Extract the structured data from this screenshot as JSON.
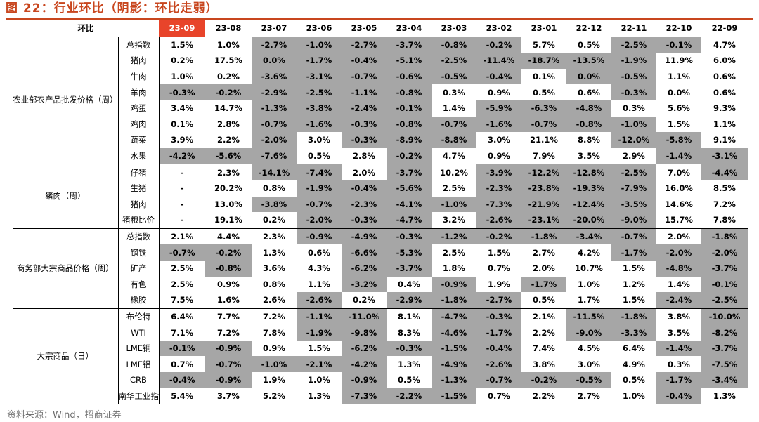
{
  "title": "图 22：行业环比（阴影：环比走弱）",
  "source": "资料来源：Wind，招商证券",
  "table": {
    "corner_label": "环比",
    "columns": [
      "23-09",
      "23-08",
      "23-07",
      "23-06",
      "23-05",
      "23-04",
      "23-03",
      "23-02",
      "23-01",
      "22-12",
      "22-11",
      "22-10",
      "22-09"
    ],
    "groups": [
      {
        "label": "农业部农产品批发价格（周）",
        "rows": [
          {
            "name": "总指数",
            "values": [
              "1.5%",
              "1.0%",
              "-2.7%",
              "-1.0%",
              "-2.7%",
              "-3.7%",
              "-0.8%",
              "-0.2%",
              "5.7%",
              "0.5%",
              "-2.5%",
              "-0.1%",
              "4.7%"
            ],
            "shaded": [
              0,
              0,
              1,
              1,
              1,
              1,
              1,
              1,
              0,
              0,
              1,
              1,
              0
            ]
          },
          {
            "name": "猪肉",
            "values": [
              "0.2%",
              "17.5%",
              "0.0%",
              "-1.7%",
              "-0.4%",
              "-5.1%",
              "-2.5%",
              "-11.4%",
              "-18.7%",
              "-13.5%",
              "-1.9%",
              "11.9%",
              "6.0%"
            ],
            "shaded": [
              0,
              0,
              1,
              1,
              1,
              1,
              1,
              1,
              1,
              1,
              1,
              0,
              0
            ]
          },
          {
            "name": "牛肉",
            "values": [
              "1.0%",
              "0.2%",
              "-3.6%",
              "-3.1%",
              "-0.7%",
              "-0.6%",
              "-0.5%",
              "-0.4%",
              "0.1%",
              "0.0%",
              "-0.5%",
              "1.1%",
              "0.6%"
            ],
            "shaded": [
              0,
              0,
              1,
              1,
              1,
              1,
              1,
              1,
              0,
              1,
              1,
              0,
              0
            ]
          },
          {
            "name": "羊肉",
            "values": [
              "-0.3%",
              "-0.2%",
              "-2.9%",
              "-2.5%",
              "-1.1%",
              "-0.8%",
              "0.3%",
              "0.9%",
              "0.5%",
              "0.6%",
              "-0.3%",
              "0.0%",
              "0.6%"
            ],
            "shaded": [
              1,
              1,
              1,
              1,
              1,
              1,
              0,
              0,
              0,
              0,
              1,
              0,
              0
            ]
          },
          {
            "name": "鸡蛋",
            "values": [
              "3.4%",
              "14.7%",
              "-1.3%",
              "-3.8%",
              "-2.4%",
              "-0.1%",
              "1.4%",
              "-5.9%",
              "-6.3%",
              "-4.8%",
              "0.3%",
              "5.6%",
              "9.3%"
            ],
            "shaded": [
              0,
              0,
              1,
              1,
              1,
              1,
              0,
              1,
              1,
              1,
              0,
              0,
              0
            ]
          },
          {
            "name": "鸡肉",
            "values": [
              "0.1%",
              "2.8%",
              "-0.7%",
              "-1.6%",
              "-0.3%",
              "-0.8%",
              "-0.7%",
              "-1.6%",
              "-0.7%",
              "-0.8%",
              "-1.0%",
              "1.5%",
              "1.1%"
            ],
            "shaded": [
              0,
              0,
              1,
              1,
              1,
              1,
              1,
              1,
              1,
              1,
              1,
              0,
              0
            ]
          },
          {
            "name": "蔬菜",
            "values": [
              "3.9%",
              "2.2%",
              "-2.0%",
              "3.0%",
              "-0.3%",
              "-8.9%",
              "-8.8%",
              "3.0%",
              "21.1%",
              "8.8%",
              "-12.0%",
              "-5.8%",
              "9.1%"
            ],
            "shaded": [
              0,
              0,
              1,
              0,
              1,
              1,
              1,
              0,
              0,
              0,
              1,
              1,
              0
            ]
          },
          {
            "name": "水果",
            "values": [
              "-4.2%",
              "-5.6%",
              "-7.6%",
              "0.5%",
              "2.8%",
              "-0.2%",
              "4.7%",
              "0.9%",
              "7.9%",
              "3.5%",
              "2.9%",
              "-1.4%",
              "-3.1%"
            ],
            "shaded": [
              1,
              1,
              1,
              0,
              0,
              1,
              0,
              0,
              0,
              0,
              0,
              1,
              1
            ]
          }
        ]
      },
      {
        "label": "猪肉（周）",
        "rows": [
          {
            "name": "仔猪",
            "values": [
              "-",
              "2.3%",
              "-14.1%",
              "-7.4%",
              "2.0%",
              "-3.7%",
              "10.2%",
              "-3.9%",
              "-12.2%",
              "-12.8%",
              "-2.5%",
              "7.0%",
              "-4.4%"
            ],
            "shaded": [
              0,
              0,
              1,
              1,
              0,
              1,
              0,
              1,
              1,
              1,
              1,
              0,
              1
            ]
          },
          {
            "name": "生猪",
            "values": [
              "-",
              "20.2%",
              "0.8%",
              "-1.9%",
              "-0.4%",
              "-5.6%",
              "2.5%",
              "-2.3%",
              "-23.8%",
              "-19.3%",
              "-7.9%",
              "16.0%",
              "8.5%"
            ],
            "shaded": [
              0,
              0,
              0,
              1,
              1,
              1,
              0,
              1,
              1,
              1,
              1,
              0,
              0
            ]
          },
          {
            "name": "猪肉",
            "values": [
              "-",
              "13.0%",
              "-3.8%",
              "-0.7%",
              "-2.3%",
              "-4.1%",
              "-1.0%",
              "-7.3%",
              "-21.9%",
              "-12.4%",
              "-3.5%",
              "14.6%",
              "7.2%"
            ],
            "shaded": [
              0,
              0,
              1,
              1,
              1,
              1,
              1,
              1,
              1,
              1,
              1,
              0,
              0
            ]
          },
          {
            "name": "猪粮比价",
            "values": [
              "-",
              "19.1%",
              "0.2%",
              "-2.0%",
              "-0.3%",
              "-4.7%",
              "3.2%",
              "-2.6%",
              "-23.1%",
              "-20.0%",
              "-9.0%",
              "15.7%",
              "7.8%"
            ],
            "shaded": [
              0,
              0,
              0,
              1,
              1,
              1,
              0,
              1,
              1,
              1,
              1,
              0,
              0
            ]
          }
        ]
      },
      {
        "label": "商务部大宗商品价格（周）",
        "rows": [
          {
            "name": "总指数",
            "values": [
              "2.1%",
              "4.4%",
              "2.3%",
              "-0.9%",
              "-4.9%",
              "-0.3%",
              "-1.2%",
              "-0.2%",
              "-1.8%",
              "-3.4%",
              "-0.7%",
              "2.0%",
              "-1.8%"
            ],
            "shaded": [
              0,
              0,
              0,
              1,
              1,
              1,
              1,
              1,
              1,
              1,
              1,
              0,
              1
            ]
          },
          {
            "name": "钢铁",
            "values": [
              "-0.7%",
              "-0.2%",
              "1.3%",
              "0.6%",
              "-6.6%",
              "-5.3%",
              "2.5%",
              "1.5%",
              "2.7%",
              "4.2%",
              "-1.7%",
              "-2.0%",
              "-2.0%"
            ],
            "shaded": [
              1,
              1,
              0,
              0,
              1,
              1,
              0,
              0,
              0,
              0,
              1,
              1,
              1
            ]
          },
          {
            "name": "矿产",
            "values": [
              "2.5%",
              "-0.8%",
              "3.6%",
              "4.3%",
              "-6.2%",
              "-3.7%",
              "1.8%",
              "0.7%",
              "2.0%",
              "10.7%",
              "1.5%",
              "-4.8%",
              "-3.7%"
            ],
            "shaded": [
              0,
              1,
              0,
              0,
              1,
              1,
              0,
              0,
              0,
              0,
              0,
              1,
              1
            ]
          },
          {
            "name": "有色",
            "values": [
              "2.5%",
              "0.9%",
              "0.8%",
              "1.1%",
              "-3.2%",
              "0.4%",
              "-0.9%",
              "1.9%",
              "-1.7%",
              "1.0%",
              "1.2%",
              "1.4%",
              "-0.1%"
            ],
            "shaded": [
              0,
              0,
              0,
              0,
              1,
              0,
              1,
              0,
              1,
              0,
              0,
              0,
              1
            ]
          },
          {
            "name": "橡胶",
            "values": [
              "7.5%",
              "1.6%",
              "2.6%",
              "-2.6%",
              "0.2%",
              "-2.9%",
              "-1.8%",
              "-2.7%",
              "0.5%",
              "1.7%",
              "1.5%",
              "-2.4%",
              "-2.5%"
            ],
            "shaded": [
              0,
              0,
              0,
              1,
              0,
              1,
              1,
              1,
              0,
              0,
              0,
              1,
              1
            ]
          }
        ]
      },
      {
        "label": "大宗商品（日）",
        "rows": [
          {
            "name": "布伦特",
            "values": [
              "6.4%",
              "7.7%",
              "7.2%",
              "-1.1%",
              "-11.0%",
              "8.1%",
              "-4.7%",
              "-0.3%",
              "2.1%",
              "-11.5%",
              "-1.8%",
              "3.8%",
              "-10.0%"
            ],
            "shaded": [
              0,
              0,
              0,
              1,
              1,
              0,
              1,
              1,
              0,
              1,
              1,
              0,
              1
            ]
          },
          {
            "name": "WTI",
            "values": [
              "7.1%",
              "7.2%",
              "7.8%",
              "-1.9%",
              "-9.8%",
              "8.3%",
              "-4.6%",
              "-1.7%",
              "2.2%",
              "-9.0%",
              "-3.3%",
              "3.5%",
              "-8.2%"
            ],
            "shaded": [
              0,
              0,
              0,
              1,
              1,
              0,
              1,
              1,
              0,
              1,
              1,
              0,
              1
            ]
          },
          {
            "name": "LME铜",
            "values": [
              "-0.1%",
              "-0.9%",
              "0.9%",
              "1.5%",
              "-6.2%",
              "-0.3%",
              "-1.5%",
              "-0.4%",
              "7.4%",
              "4.5%",
              "6.4%",
              "-1.4%",
              "-3.7%"
            ],
            "shaded": [
              1,
              1,
              0,
              0,
              1,
              1,
              1,
              1,
              0,
              0,
              0,
              1,
              1
            ]
          },
          {
            "name": "LME铝",
            "values": [
              "0.7%",
              "-0.7%",
              "-1.0%",
              "-2.1%",
              "-4.2%",
              "1.3%",
              "-4.9%",
              "-2.6%",
              "3.8%",
              "3.0%",
              "4.9%",
              "0.3%",
              "-7.5%"
            ],
            "shaded": [
              0,
              1,
              1,
              1,
              1,
              0,
              1,
              1,
              0,
              0,
              0,
              0,
              1
            ]
          },
          {
            "name": "CRB",
            "values": [
              "-0.4%",
              "-0.9%",
              "1.9%",
              "1.0%",
              "-0.9%",
              "0.5%",
              "-1.3%",
              "-0.7%",
              "-0.2%",
              "-0.5%",
              "0.5%",
              "-1.7%",
              "-3.4%"
            ],
            "shaded": [
              1,
              1,
              0,
              0,
              1,
              0,
              1,
              1,
              1,
              1,
              0,
              1,
              1
            ]
          },
          {
            "name": "南华工业指数",
            "values": [
              "5.4%",
              "3.7%",
              "5.2%",
              "1.3%",
              "-7.3%",
              "-2.2%",
              "-1.5%",
              "0.7%",
              "2.2%",
              "2.7%",
              "1.0%",
              "-0.4%",
              "1.3%"
            ],
            "shaded": [
              0,
              0,
              0,
              0,
              1,
              1,
              1,
              0,
              0,
              0,
              0,
              1,
              0
            ]
          }
        ]
      }
    ]
  }
}
